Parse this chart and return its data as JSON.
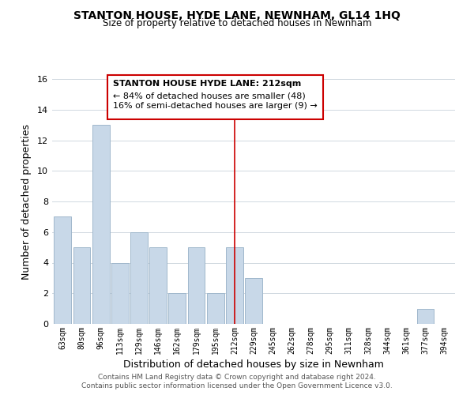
{
  "title": "STANTON HOUSE, HYDE LANE, NEWNHAM, GL14 1HQ",
  "subtitle": "Size of property relative to detached houses in Newnham",
  "xlabel": "Distribution of detached houses by size in Newnham",
  "ylabel": "Number of detached properties",
  "footer_lines": [
    "Contains HM Land Registry data © Crown copyright and database right 2024.",
    "Contains public sector information licensed under the Open Government Licence v3.0."
  ],
  "bin_labels": [
    "63sqm",
    "80sqm",
    "96sqm",
    "113sqm",
    "129sqm",
    "146sqm",
    "162sqm",
    "179sqm",
    "195sqm",
    "212sqm",
    "229sqm",
    "245sqm",
    "262sqm",
    "278sqm",
    "295sqm",
    "311sqm",
    "328sqm",
    "344sqm",
    "361sqm",
    "377sqm",
    "394sqm"
  ],
  "bar_heights": [
    7,
    5,
    13,
    4,
    6,
    5,
    2,
    5,
    2,
    5,
    3,
    0,
    0,
    0,
    0,
    0,
    0,
    0,
    0,
    1,
    0
  ],
  "highlight_index": 9,
  "normal_color": "#c8d8e8",
  "bar_edge_color": "#a0b8cc",
  "highlight_line_color": "#cc0000",
  "annotation_text_line1": "STANTON HOUSE HYDE LANE: 212sqm",
  "annotation_text_line2": "← 84% of detached houses are smaller (48)",
  "annotation_text_line3": "16% of semi-detached houses are larger (9) →",
  "ylim": [
    0,
    16
  ],
  "yticks": [
    0,
    2,
    4,
    6,
    8,
    10,
    12,
    14,
    16
  ],
  "background_color": "#ffffff",
  "grid_color": "#d0d8e0"
}
